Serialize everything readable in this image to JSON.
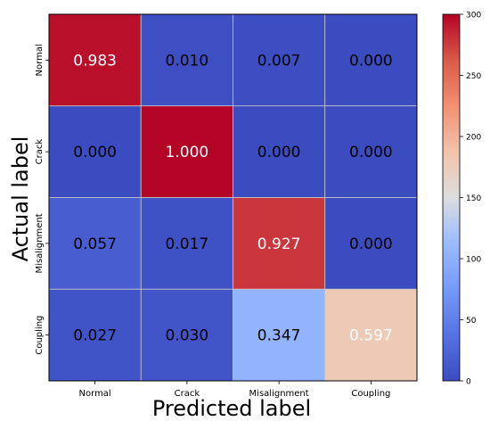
{
  "chart_data": {
    "type": "heatmap",
    "title": "",
    "xlabel": "Predicted label",
    "ylabel": "Actual label",
    "x_categories": [
      "Normal",
      "Crack",
      "Misalignment",
      "Coupling"
    ],
    "y_categories": [
      "Normal",
      "Crack",
      "Misalignment",
      "Coupling"
    ],
    "values": [
      [
        0.983,
        0.01,
        0.007,
        0.0
      ],
      [
        0.0,
        1.0,
        0.0,
        0.0
      ],
      [
        0.057,
        0.017,
        0.927,
        0.0
      ],
      [
        0.027,
        0.03,
        0.347,
        0.597
      ]
    ],
    "labels": [
      [
        "0.983",
        "0.010",
        "0.007",
        "0.000"
      ],
      [
        "0.000",
        "1.000",
        "0.000",
        "0.000"
      ],
      [
        "0.057",
        "0.017",
        "0.927",
        "0.000"
      ],
      [
        "0.027",
        "0.030",
        "0.347",
        "0.597"
      ]
    ],
    "counts": [
      [
        295,
        3,
        2,
        0
      ],
      [
        0,
        300,
        0,
        0
      ],
      [
        17,
        5,
        278,
        0
      ],
      [
        8,
        9,
        104,
        179
      ]
    ],
    "colormap": "coolwarm",
    "colorbar": {
      "min": 0,
      "max": 300,
      "ticks": [
        0,
        50,
        100,
        150,
        200,
        250,
        300
      ],
      "tick_labels": [
        "0",
        "50",
        "100",
        "150",
        "200",
        "250",
        "300"
      ]
    },
    "text_colors": {
      "dark": "#000000",
      "light": "#ffffff"
    },
    "grid": true,
    "grid_color": "#c8c8c8"
  }
}
